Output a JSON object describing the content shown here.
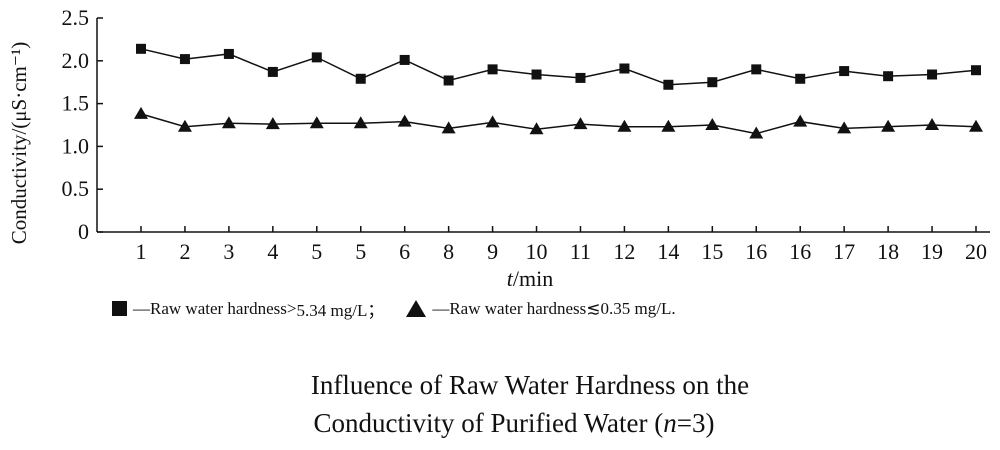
{
  "chart_data": {
    "type": "line",
    "ylabel": "Conductivity/(μS·cm⁻¹)",
    "xlabel_italic": "t",
    "xlabel_rest": "/min",
    "categories": [
      "1",
      "2",
      "3",
      "4",
      "5",
      "5",
      "6",
      "8",
      "9",
      "10",
      "11",
      "12",
      "14",
      "15",
      "16",
      "16",
      "17",
      "18",
      "19",
      "20"
    ],
    "yticks": [
      "0",
      "0.5",
      "1.0",
      "1.5",
      "2.0",
      "2.5"
    ],
    "ylim": [
      0,
      2.5
    ],
    "grid": false,
    "series": [
      {
        "marker": "square",
        "values": [
          2.14,
          2.02,
          2.08,
          1.87,
          2.04,
          1.79,
          2.01,
          1.77,
          1.9,
          1.84,
          1.8,
          1.91,
          1.72,
          1.75,
          1.9,
          1.79,
          1.88,
          1.82,
          1.84,
          1.89
        ]
      },
      {
        "marker": "triangle",
        "values": [
          1.38,
          1.23,
          1.27,
          1.26,
          1.27,
          1.27,
          1.29,
          1.21,
          1.28,
          1.2,
          1.26,
          1.23,
          1.23,
          1.25,
          1.15,
          1.29,
          1.21,
          1.23,
          1.25,
          1.23
        ]
      }
    ]
  },
  "legend": {
    "item1": "—Raw water hardness 5.34 mg/L；",
    "item1_prefix": "—Raw water hardness ",
    "item1_op": ">",
    "item1_value": "5.34 mg/L；",
    "item2_prefix": "—Raw water hardness ",
    "item2_op": "≲",
    "item2_value": "0.35 mg/L."
  },
  "caption": {
    "line1": "Influence of Raw Water Hardness on the",
    "line2_pre": "Conductivity of Purified Water (",
    "line2_italic": "n",
    "line2_post": "=3)"
  }
}
